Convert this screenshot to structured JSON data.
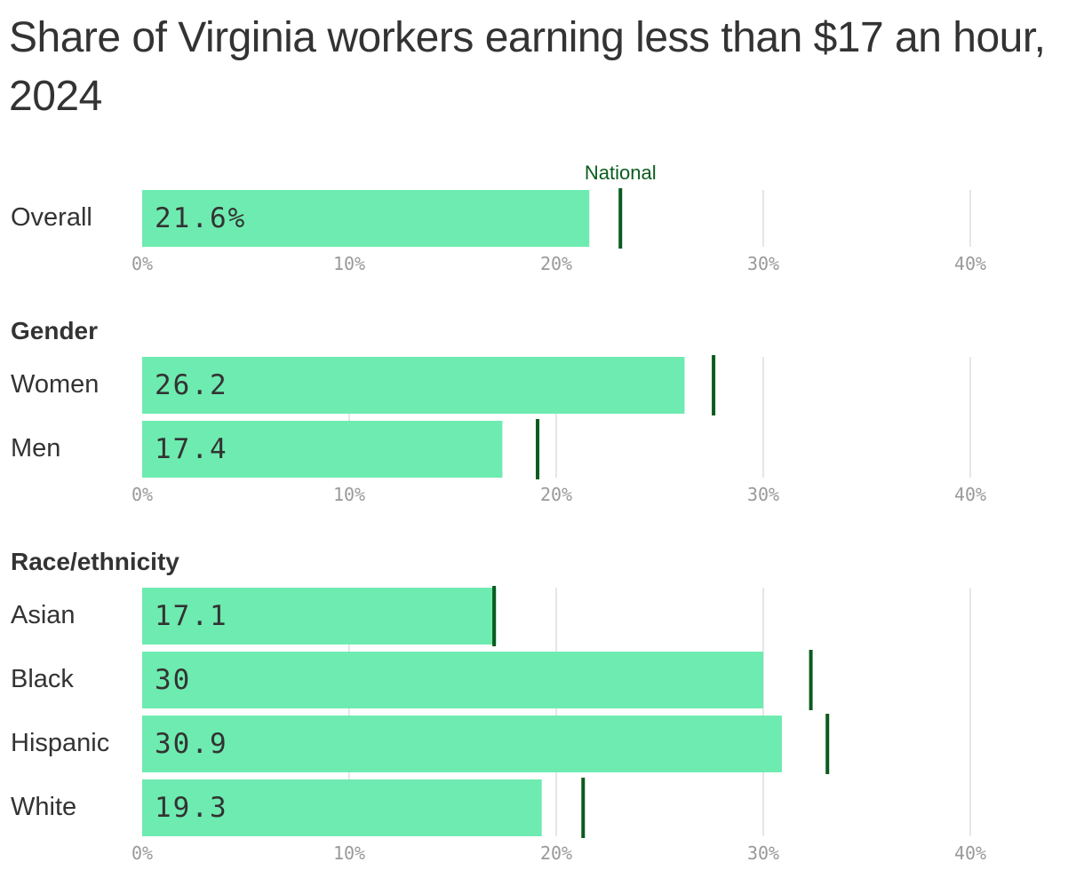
{
  "title": "Share of Virginia workers earning less than $17 an hour, 2024",
  "chart_data": {
    "type": "bar",
    "orientation": "horizontal",
    "xlim": [
      0,
      40
    ],
    "ticks": [
      "0%",
      "10%",
      "20%",
      "30%",
      "40%"
    ],
    "marker_label": "National",
    "colors": {
      "bar": "#6eebb0",
      "marker": "#0a5c1e",
      "grid": "#dddddd"
    },
    "groups": [
      {
        "title": "",
        "rows": [
          {
            "label": "Overall",
            "value": 21.6,
            "value_label": "21.6%",
            "national": 23.1
          }
        ]
      },
      {
        "title": "Gender",
        "rows": [
          {
            "label": "Women",
            "value": 26.2,
            "value_label": "26.2",
            "national": 27.6
          },
          {
            "label": "Men",
            "value": 17.4,
            "value_label": "17.4",
            "national": 19.1
          }
        ]
      },
      {
        "title": "Race/ethnicity",
        "rows": [
          {
            "label": "Asian",
            "value": 17.1,
            "value_label": "17.1",
            "national": 17.0
          },
          {
            "label": "Black",
            "value": 30,
            "value_label": "30",
            "national": 32.3
          },
          {
            "label": "Hispanic",
            "value": 30.9,
            "value_label": "30.9",
            "national": 33.1
          },
          {
            "label": "White",
            "value": 19.3,
            "value_label": "19.3",
            "national": 21.3
          }
        ]
      }
    ]
  }
}
